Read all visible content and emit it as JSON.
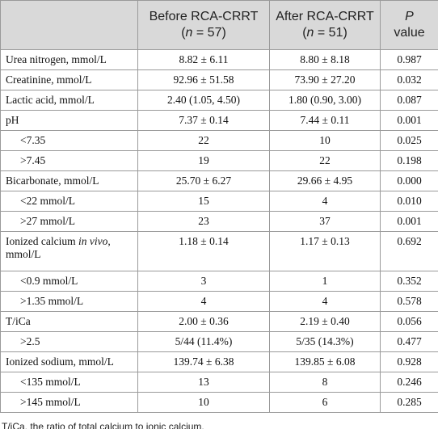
{
  "table": {
    "header": [
      [],
      [
        [
          {
            "text": "Before RCA-CRRT"
          }
        ],
        [
          {
            "text": "("
          },
          {
            "text": "n",
            "italic": true
          },
          {
            "text": " = 57)"
          }
        ]
      ],
      [
        [
          {
            "text": "After RCA-CRRT"
          }
        ],
        [
          {
            "text": "("
          },
          {
            "text": "n",
            "italic": true
          },
          {
            "text": " = 51)"
          }
        ]
      ],
      [
        [
          {
            "text": "P",
            "italic": true
          }
        ],
        [
          {
            "text": "value"
          }
        ]
      ]
    ],
    "rows": [
      {
        "label": "Urea nitrogen, mmol/L",
        "values": [
          "8.82 ± 6.11",
          "8.80 ± 8.18",
          "0.987"
        ]
      },
      {
        "label": "Creatinine, mmol/L",
        "values": [
          "92.96 ± 51.58",
          "73.90 ± 27.20",
          "0.032"
        ]
      },
      {
        "label": "Lactic acid, mmol/L",
        "values": [
          "2.40 (1.05, 4.50)",
          "1.80 (0.90, 3.00)",
          "0.087"
        ]
      },
      {
        "label": "pH",
        "values": [
          "7.37 ± 0.14",
          "7.44 ± 0.11",
          "0.001"
        ],
        "sub": [
          {
            "label": "<7.35",
            "values": [
              "22",
              "10",
              "0.025"
            ]
          },
          {
            "label": ">7.45",
            "values": [
              "19",
              "22",
              "0.198"
            ]
          }
        ]
      },
      {
        "label": "Bicarbonate, mmol/L",
        "values": [
          "25.70 ± 6.27",
          "29.66 ± 4.95",
          "0.000"
        ],
        "sub": [
          {
            "label": "<22 mmol/L",
            "values": [
              "15",
              "4",
              "0.010"
            ]
          },
          {
            "label": ">27 mmol/L",
            "values": [
              "23",
              "37",
              "0.001"
            ]
          }
        ]
      },
      {
        "label": [
          {
            "text": "Ionized calcium "
          },
          {
            "text": "in vivo",
            "italic": true
          },
          {
            "text": ", mmol/L"
          }
        ],
        "values": [
          "1.18 ± 0.14",
          "1.17 ± 0.13",
          "0.692"
        ],
        "sub": [
          {
            "label": "<0.9 mmol/L",
            "values": [
              "3",
              "1",
              "0.352"
            ]
          },
          {
            "label": ">1.35 mmol/L",
            "values": [
              "4",
              "4",
              "0.578"
            ]
          }
        ]
      },
      {
        "label": "T/iCa",
        "values": [
          "2.00 ± 0.36",
          "2.19 ± 0.40",
          "0.056"
        ],
        "sub": [
          {
            "label": ">2.5",
            "values": [
              "5/44 (11.4%)",
              "5/35 (14.3%)",
              "0.477"
            ]
          }
        ]
      },
      {
        "label": "Ionized sodium, mmol/L",
        "values": [
          "139.74 ± 6.38",
          "139.85 ± 6.08",
          "0.928"
        ],
        "sub": [
          {
            "label": "<135 mmol/L",
            "values": [
              "13",
              "8",
              "0.246"
            ]
          },
          {
            "label": ">145 mmol/L",
            "values": [
              "10",
              "6",
              "0.285"
            ]
          }
        ]
      }
    ]
  },
  "footnote": "T/iCa, the ratio of total calcium to ionic calcium."
}
